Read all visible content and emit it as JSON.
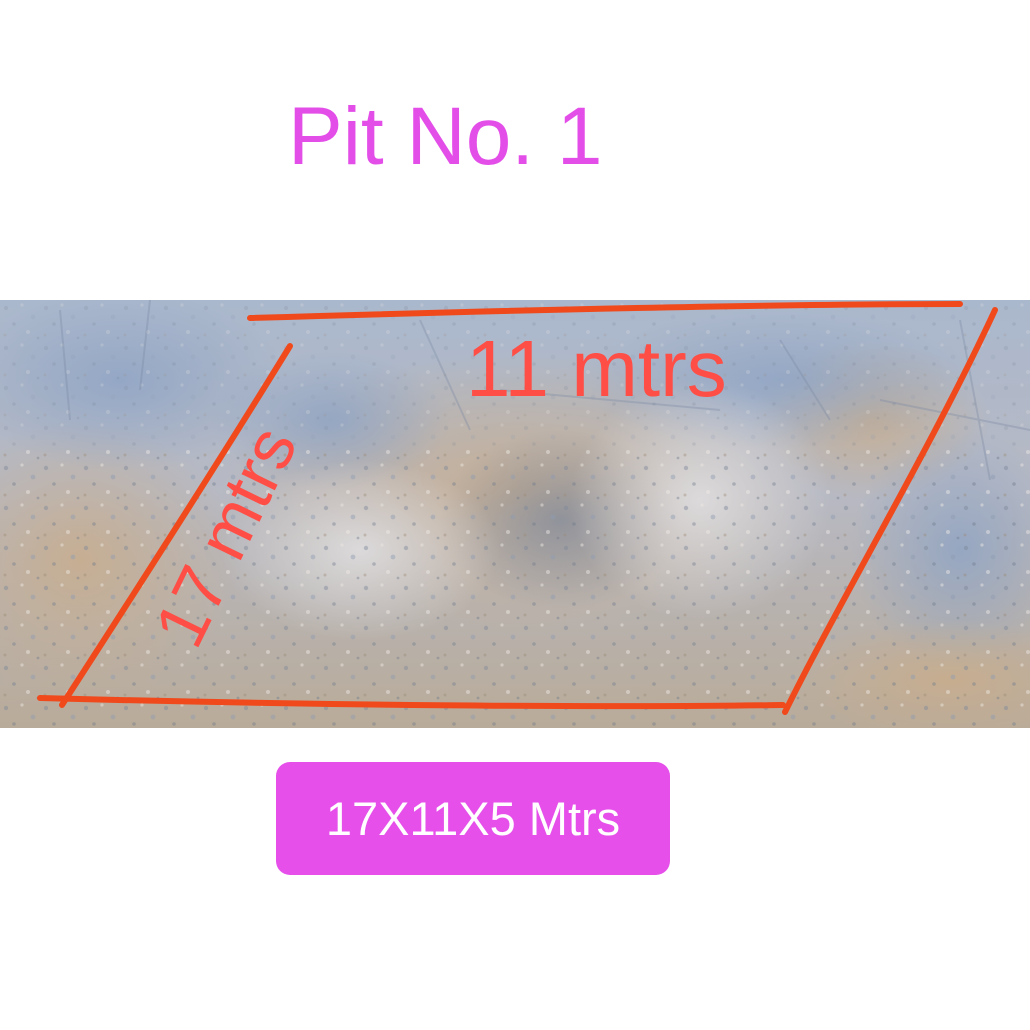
{
  "title": "Pit No. 1",
  "photo": {
    "label_width": "11 mtrs",
    "label_length": "17 mtrs",
    "outline_color": "#f04a1c",
    "label_color": "#ff4e45"
  },
  "dimensions_badge": {
    "text": "17X11X5 Mtrs",
    "background": "#e64fea"
  }
}
